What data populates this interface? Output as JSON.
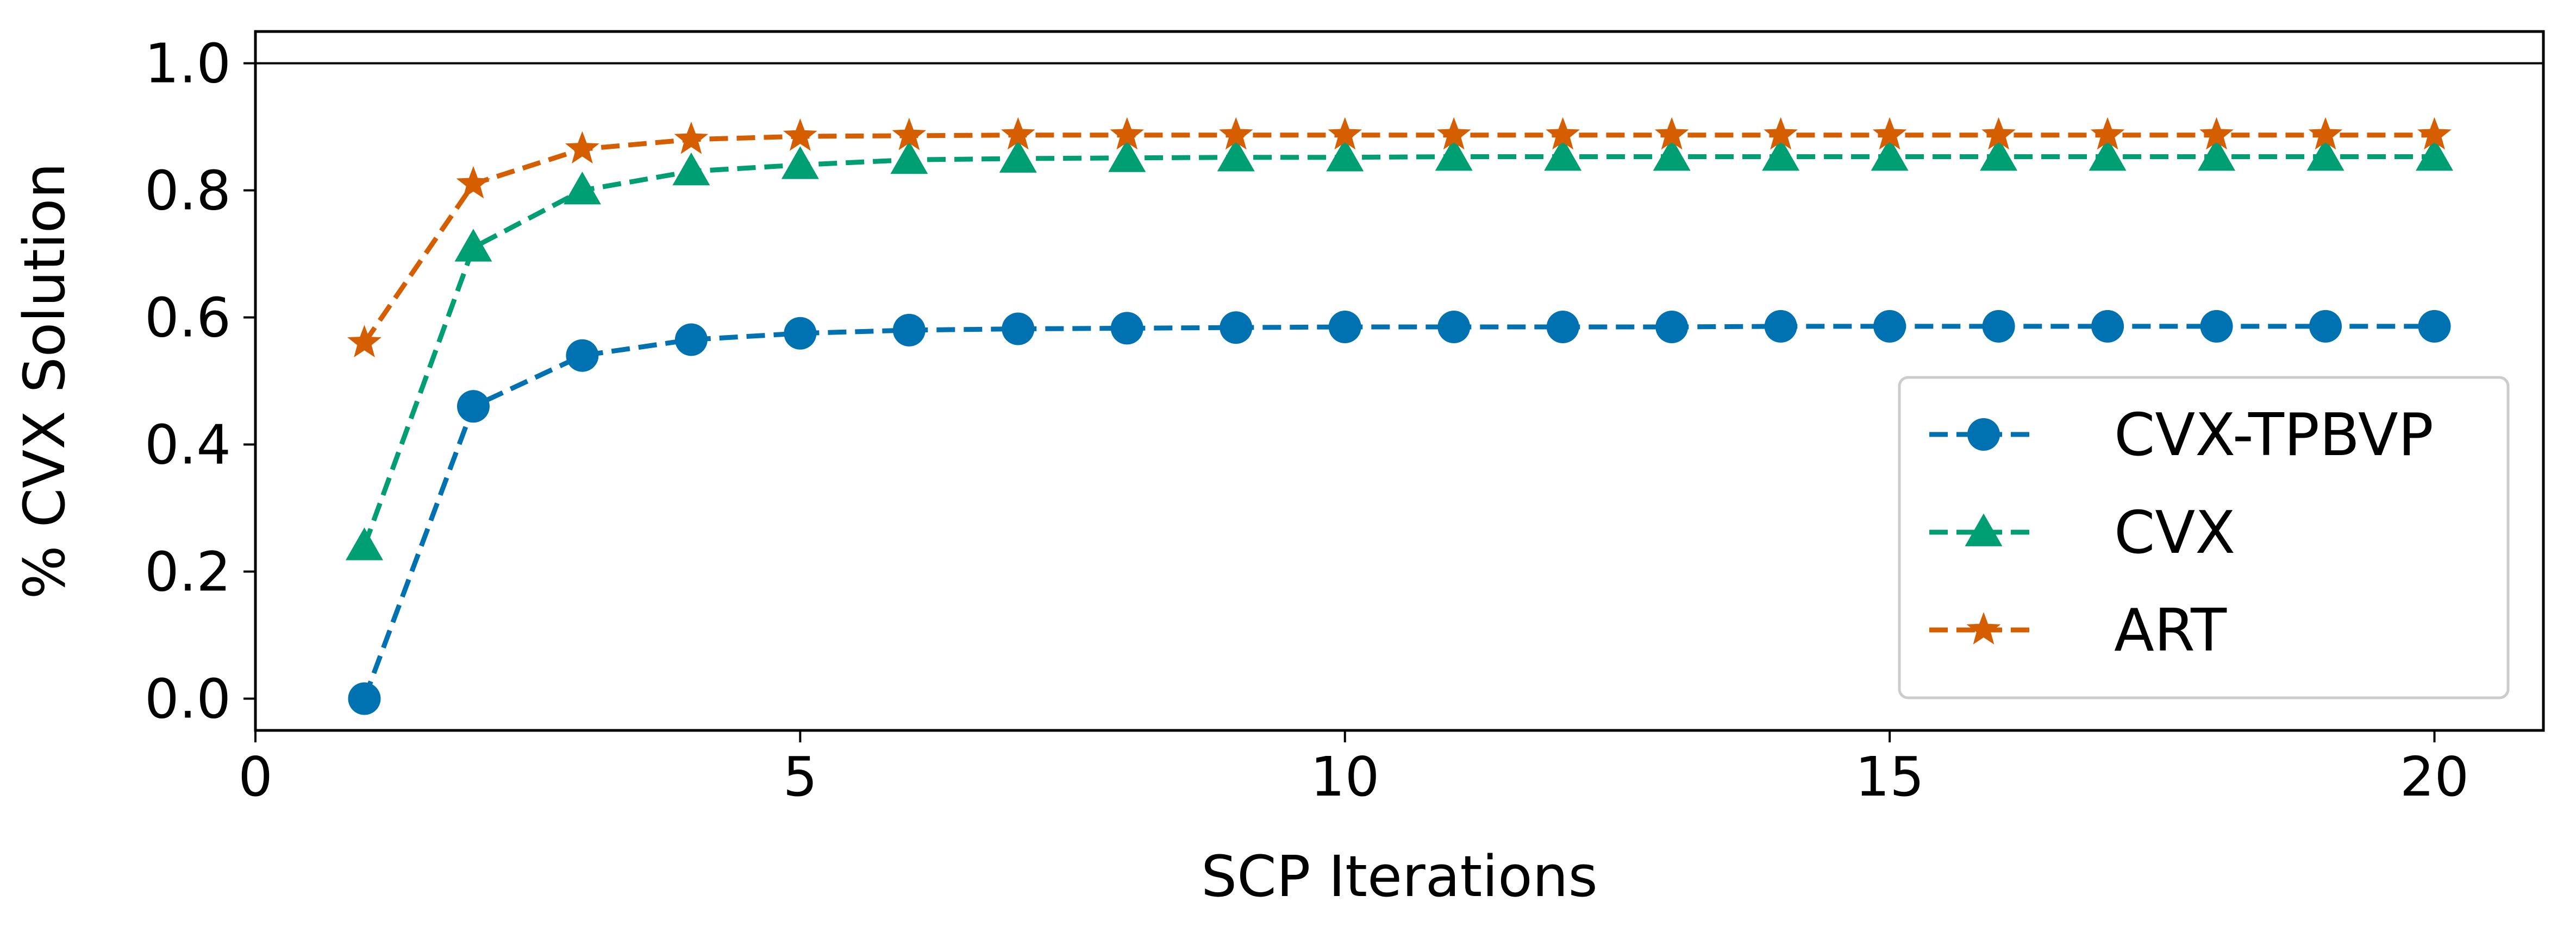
{
  "chart_data": {
    "type": "line",
    "xlabel": "SCP Iterations",
    "ylabel": "% CVX Solution",
    "xlim": [
      0,
      21
    ],
    "ylim": [
      -0.05,
      1.05
    ],
    "xticks": [
      0,
      5,
      10,
      15,
      20
    ],
    "yticks": [
      0.0,
      0.2,
      0.4,
      0.6,
      0.8,
      1.0
    ],
    "xtick_labels": [
      "0",
      "5",
      "10",
      "15",
      "20"
    ],
    "ytick_labels": [
      "0.0",
      "0.2",
      "0.4",
      "0.6",
      "0.8",
      "1.0"
    ],
    "reference_line": 1.0,
    "grid": false,
    "legend_position": "lower-right",
    "x": [
      1,
      2,
      3,
      4,
      5,
      6,
      7,
      8,
      9,
      10,
      11,
      12,
      13,
      14,
      15,
      16,
      17,
      18,
      19,
      20
    ],
    "series": [
      {
        "name": "CVX-TPBVP",
        "color": "#0072b2",
        "marker": "circle",
        "values": [
          0.0,
          0.46,
          0.54,
          0.565,
          0.575,
          0.58,
          0.582,
          0.583,
          0.584,
          0.585,
          0.585,
          0.585,
          0.585,
          0.586,
          0.586,
          0.586,
          0.586,
          0.586,
          0.586,
          0.586
        ]
      },
      {
        "name": "CVX",
        "color": "#009e73",
        "marker": "triangle",
        "values": [
          0.24,
          0.71,
          0.8,
          0.83,
          0.84,
          0.848,
          0.85,
          0.851,
          0.852,
          0.852,
          0.853,
          0.853,
          0.853,
          0.853,
          0.853,
          0.853,
          0.853,
          0.853,
          0.853,
          0.853
        ]
      },
      {
        "name": "ART",
        "color": "#d55e00",
        "marker": "star",
        "values": [
          0.56,
          0.81,
          0.865,
          0.88,
          0.885,
          0.886,
          0.887,
          0.887,
          0.887,
          0.887,
          0.887,
          0.887,
          0.887,
          0.887,
          0.887,
          0.887,
          0.887,
          0.887,
          0.887,
          0.887
        ]
      }
    ]
  }
}
